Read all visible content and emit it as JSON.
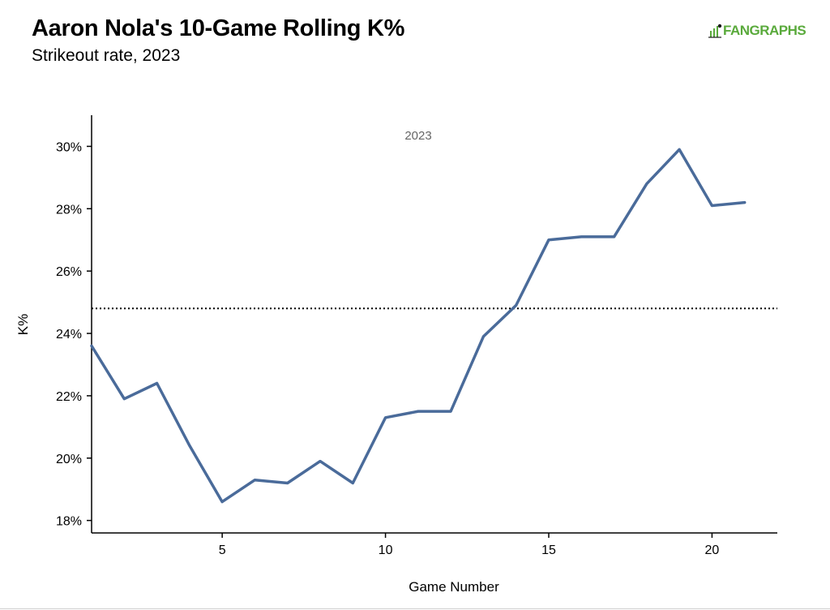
{
  "header": {
    "title": "Aaron Nola's 10-Game Rolling K%",
    "subtitle": "Strikeout rate, 2023",
    "logo_text": "FANGRAPHS",
    "logo_color": "#5aaa3c"
  },
  "chart_data": {
    "type": "line",
    "title": "Aaron Nola's 10-Game Rolling K%",
    "subtitle": "Strikeout rate, 2023",
    "facet_label": "2023",
    "xlabel": "Game Number",
    "ylabel": "K%",
    "xlim": [
      1,
      22
    ],
    "ylim": [
      17.6,
      31.0
    ],
    "x_ticks": [
      5,
      10,
      15,
      20
    ],
    "x_tick_labels": [
      "5",
      "10",
      "15",
      "20"
    ],
    "y_ticks": [
      18,
      20,
      22,
      24,
      26,
      28,
      30
    ],
    "y_tick_labels": [
      "18%",
      "20%",
      "22%",
      "24%",
      "26%",
      "28%",
      "30%"
    ],
    "line_color": "#4a6b9a",
    "reference_line": {
      "value": 24.8,
      "style": "dotted"
    },
    "series": [
      {
        "x": [
          1,
          2,
          3,
          4,
          5,
          6,
          7,
          8,
          9,
          10,
          11,
          12,
          13,
          14,
          15,
          16,
          17,
          18,
          19,
          20,
          21
        ],
        "values": [
          23.6,
          21.9,
          22.4,
          20.4,
          18.6,
          19.3,
          19.2,
          19.9,
          19.2,
          21.3,
          21.5,
          21.5,
          23.9,
          24.9,
          27.0,
          27.1,
          27.1,
          28.8,
          29.9,
          28.1,
          28.2
        ]
      }
    ],
    "grid": false,
    "legend": "none"
  }
}
